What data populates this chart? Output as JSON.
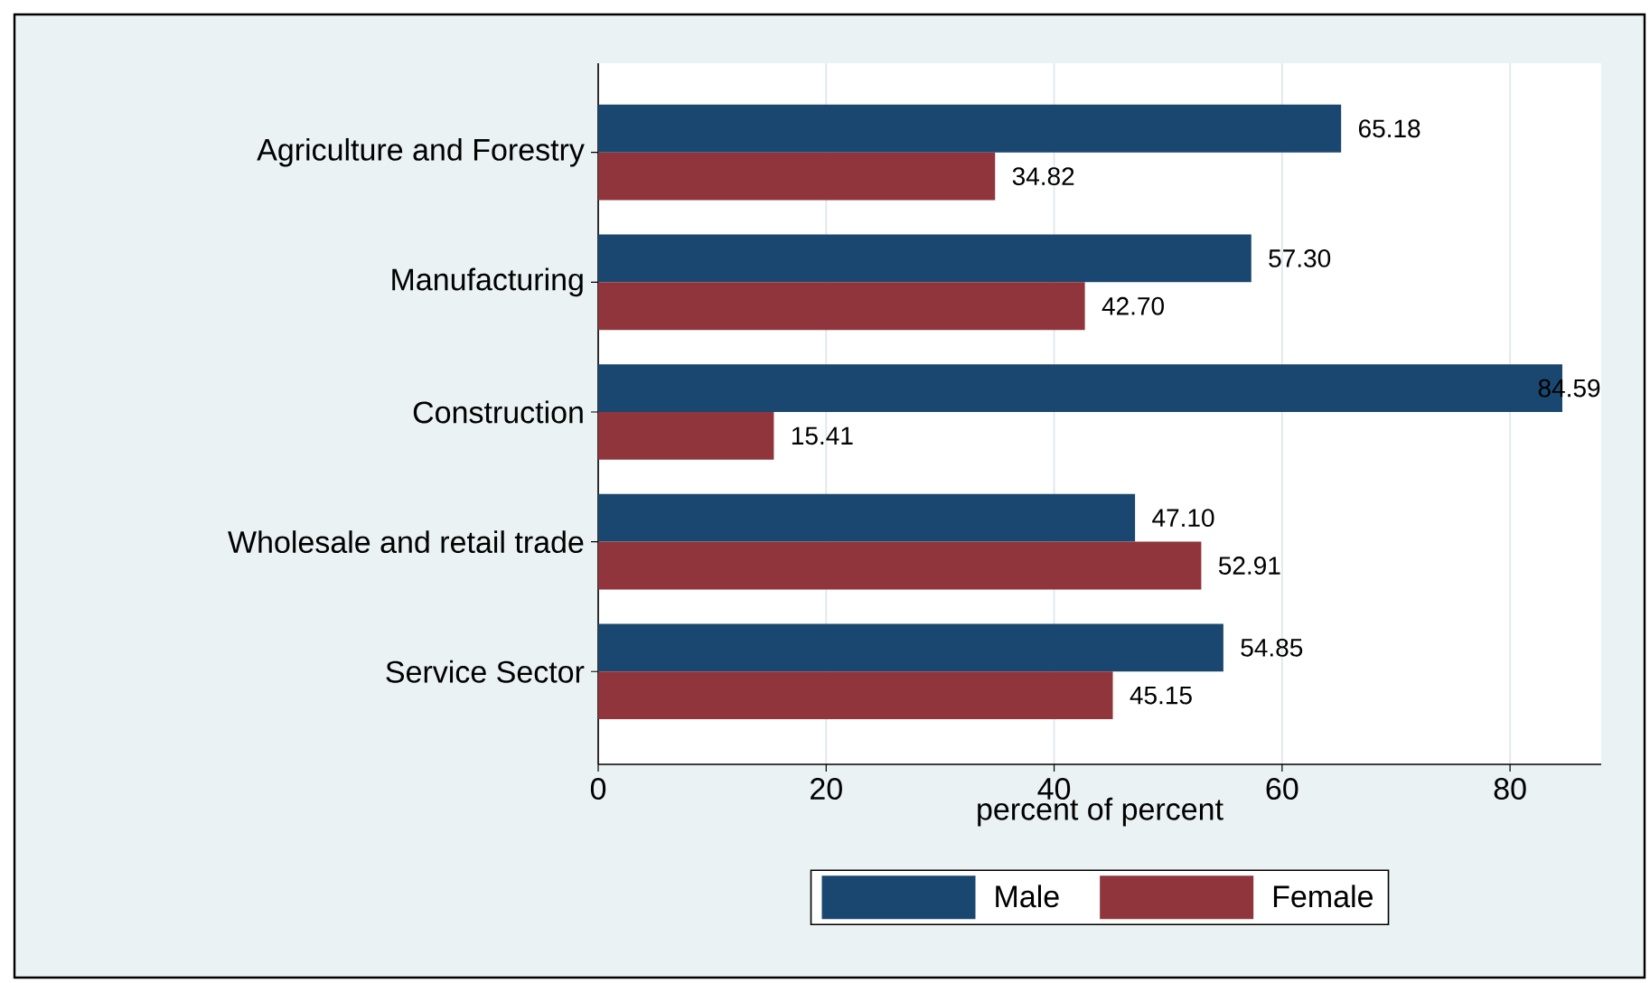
{
  "chart_data": {
    "type": "bar",
    "orientation": "horizontal",
    "xlabel": "percent of percent",
    "categories": [
      "Agriculture and Forestry",
      "Manufacturing",
      "Construction",
      "Wholesale and retail trade",
      "Service Sector"
    ],
    "series": [
      {
        "name": "Male",
        "color": "#1a476f",
        "values": [
          65.18,
          57.3,
          84.59,
          47.1,
          54.85
        ],
        "value_labels": [
          "65.18",
          "57.30",
          "84.59",
          "47.10",
          "54.85"
        ]
      },
      {
        "name": "Female",
        "color": "#90353b",
        "values": [
          34.82,
          42.7,
          15.41,
          52.91,
          45.15
        ],
        "value_labels": [
          "34.82",
          "42.70",
          "15.41",
          "52.91",
          "45.15"
        ]
      }
    ],
    "xlim": [
      0,
      88
    ],
    "xticks": [
      0,
      20,
      40,
      60,
      80
    ],
    "grid": "x",
    "legend": "bottom"
  }
}
